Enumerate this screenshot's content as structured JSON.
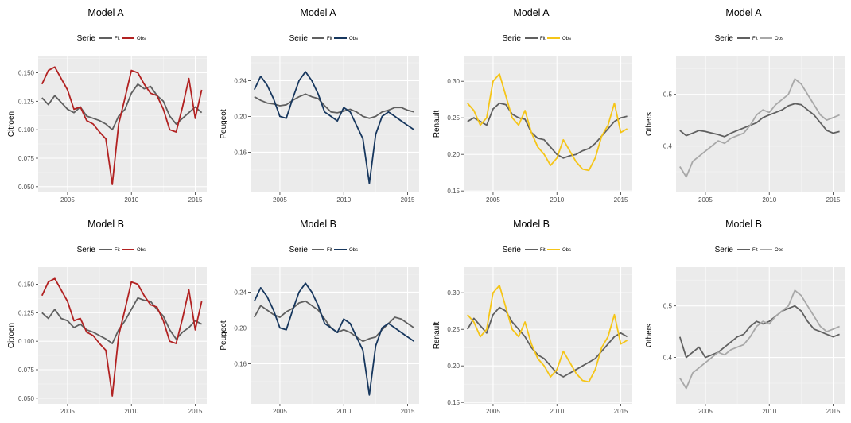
{
  "colors": {
    "fit": "#606060",
    "citroen_obs": "#b22222",
    "peugeot_obs": "#17375e",
    "renault_obs": "#f5c518",
    "others_obs": "#a8a8a8",
    "panel_bg": "#ebebeb",
    "grid_major": "#ffffff"
  },
  "legend": {
    "title": "Serie",
    "fit_label": "Fit",
    "obs_label": "Obs"
  },
  "chart_data": [
    {
      "type": "line",
      "title": "Model A",
      "ylabel": "Citroen",
      "obs_color": "#b22222",
      "xlim": [
        2002.7,
        2015.9
      ],
      "xticks": [
        2005,
        2010,
        2015
      ],
      "ylim": [
        0.045,
        0.165
      ],
      "yticks": [
        0.05,
        0.075,
        0.1,
        0.125,
        0.15
      ],
      "ytick_labels": [
        "0.050",
        "0.075",
        "0.100",
        "0.125",
        "0.150"
      ],
      "x": [
        2003,
        2003.5,
        2004,
        2004.5,
        2005,
        2005.5,
        2006,
        2006.5,
        2007,
        2007.5,
        2008,
        2008.5,
        2009,
        2009.5,
        2010,
        2010.5,
        2011,
        2011.5,
        2012,
        2012.5,
        2013,
        2013.5,
        2014,
        2014.5,
        2015,
        2015.5
      ],
      "series": [
        {
          "name": "Fit",
          "values": [
            0.128,
            0.122,
            0.13,
            0.124,
            0.118,
            0.115,
            0.12,
            0.112,
            0.11,
            0.108,
            0.105,
            0.1,
            0.112,
            0.118,
            0.132,
            0.14,
            0.136,
            0.138,
            0.13,
            0.125,
            0.112,
            0.105,
            0.11,
            0.115,
            0.12,
            0.115
          ]
        },
        {
          "name": "Obs",
          "values": [
            0.14,
            0.152,
            0.155,
            0.145,
            0.135,
            0.118,
            0.12,
            0.108,
            0.105,
            0.098,
            0.092,
            0.052,
            0.105,
            0.128,
            0.152,
            0.15,
            0.14,
            0.132,
            0.13,
            0.118,
            0.1,
            0.098,
            0.12,
            0.145,
            0.11,
            0.135
          ]
        }
      ]
    },
    {
      "type": "line",
      "title": "Model A",
      "ylabel": "Peugeot",
      "obs_color": "#17375e",
      "xlim": [
        2002.7,
        2015.9
      ],
      "xticks": [
        2005,
        2010,
        2015
      ],
      "ylim": [
        0.115,
        0.268
      ],
      "yticks": [
        0.16,
        0.2,
        0.24
      ],
      "ytick_labels": [
        "0.16",
        "0.20",
        "0.24"
      ],
      "x": [
        2003,
        2003.5,
        2004,
        2004.5,
        2005,
        2005.5,
        2006,
        2006.5,
        2007,
        2007.5,
        2008,
        2008.5,
        2009,
        2009.5,
        2010,
        2010.5,
        2011,
        2011.5,
        2012,
        2012.5,
        2013,
        2013.5,
        2014,
        2014.5,
        2015,
        2015.5
      ],
      "series": [
        {
          "name": "Fit",
          "values": [
            0.222,
            0.218,
            0.215,
            0.214,
            0.212,
            0.213,
            0.218,
            0.222,
            0.225,
            0.222,
            0.22,
            0.212,
            0.205,
            0.204,
            0.206,
            0.208,
            0.205,
            0.2,
            0.198,
            0.2,
            0.205,
            0.207,
            0.21,
            0.21,
            0.207,
            0.205
          ]
        },
        {
          "name": "Obs",
          "values": [
            0.23,
            0.245,
            0.235,
            0.22,
            0.2,
            0.198,
            0.22,
            0.24,
            0.25,
            0.24,
            0.225,
            0.205,
            0.2,
            0.195,
            0.21,
            0.205,
            0.19,
            0.175,
            0.125,
            0.18,
            0.2,
            0.205,
            0.2,
            0.195,
            0.19,
            0.185
          ]
        }
      ]
    },
    {
      "type": "line",
      "title": "Model A",
      "ylabel": "Renault",
      "obs_color": "#f5c518",
      "xlim": [
        2002.7,
        2015.9
      ],
      "xticks": [
        2005,
        2010,
        2015
      ],
      "ylim": [
        0.148,
        0.335
      ],
      "yticks": [
        0.15,
        0.2,
        0.25,
        0.3
      ],
      "ytick_labels": [
        "0.15",
        "0.20",
        "0.25",
        "0.30"
      ],
      "x": [
        2003,
        2003.5,
        2004,
        2004.5,
        2005,
        2005.5,
        2006,
        2006.5,
        2007,
        2007.5,
        2008,
        2008.5,
        2009,
        2009.5,
        2010,
        2010.5,
        2011,
        2011.5,
        2012,
        2012.5,
        2013,
        2013.5,
        2014,
        2014.5,
        2015,
        2015.5
      ],
      "series": [
        {
          "name": "Fit",
          "values": [
            0.245,
            0.25,
            0.245,
            0.24,
            0.262,
            0.27,
            0.268,
            0.255,
            0.25,
            0.248,
            0.23,
            0.222,
            0.22,
            0.21,
            0.2,
            0.195,
            0.198,
            0.2,
            0.205,
            0.208,
            0.215,
            0.225,
            0.235,
            0.245,
            0.25,
            0.252
          ]
        },
        {
          "name": "Obs",
          "values": [
            0.27,
            0.26,
            0.24,
            0.25,
            0.3,
            0.31,
            0.28,
            0.25,
            0.24,
            0.26,
            0.23,
            0.21,
            0.2,
            0.185,
            0.195,
            0.22,
            0.205,
            0.19,
            0.18,
            0.178,
            0.195,
            0.225,
            0.24,
            0.27,
            0.23,
            0.235
          ]
        }
      ]
    },
    {
      "type": "line",
      "title": "Model A",
      "ylabel": "Others",
      "obs_color": "#a8a8a8",
      "xlim": [
        2002.7,
        2015.9
      ],
      "xticks": [
        2005,
        2010,
        2015
      ],
      "ylim": [
        0.31,
        0.575
      ],
      "yticks": [
        0.4,
        0.5
      ],
      "ytick_labels": [
        "0.4",
        "0.5"
      ],
      "x": [
        2003,
        2003.5,
        2004,
        2004.5,
        2005,
        2005.5,
        2006,
        2006.5,
        2007,
        2007.5,
        2008,
        2008.5,
        2009,
        2009.5,
        2010,
        2010.5,
        2011,
        2011.5,
        2012,
        2012.5,
        2013,
        2013.5,
        2014,
        2014.5,
        2015,
        2015.5
      ],
      "series": [
        {
          "name": "Fit",
          "values": [
            0.43,
            0.42,
            0.425,
            0.43,
            0.428,
            0.425,
            0.422,
            0.418,
            0.425,
            0.43,
            0.435,
            0.44,
            0.445,
            0.455,
            0.46,
            0.465,
            0.47,
            0.478,
            0.482,
            0.48,
            0.47,
            0.46,
            0.445,
            0.43,
            0.425,
            0.428
          ]
        },
        {
          "name": "Obs",
          "values": [
            0.36,
            0.34,
            0.37,
            0.38,
            0.39,
            0.4,
            0.41,
            0.405,
            0.415,
            0.42,
            0.425,
            0.44,
            0.46,
            0.47,
            0.465,
            0.48,
            0.49,
            0.5,
            0.53,
            0.52,
            0.5,
            0.48,
            0.46,
            0.45,
            0.455,
            0.46
          ]
        }
      ]
    },
    {
      "type": "line",
      "title": "Model B",
      "ylabel": "Citroen",
      "obs_color": "#b22222",
      "xlim": [
        2002.7,
        2015.9
      ],
      "xticks": [
        2005,
        2010,
        2015
      ],
      "ylim": [
        0.045,
        0.165
      ],
      "yticks": [
        0.05,
        0.075,
        0.1,
        0.125,
        0.15
      ],
      "ytick_labels": [
        "0.050",
        "0.075",
        "0.100",
        "0.125",
        "0.150"
      ],
      "x": [
        2003,
        2003.5,
        2004,
        2004.5,
        2005,
        2005.5,
        2006,
        2006.5,
        2007,
        2007.5,
        2008,
        2008.5,
        2009,
        2009.5,
        2010,
        2010.5,
        2011,
        2011.5,
        2012,
        2012.5,
        2013,
        2013.5,
        2014,
        2014.5,
        2015,
        2015.5
      ],
      "series": [
        {
          "name": "Fit",
          "values": [
            0.125,
            0.12,
            0.128,
            0.12,
            0.118,
            0.112,
            0.115,
            0.11,
            0.108,
            0.105,
            0.102,
            0.098,
            0.11,
            0.118,
            0.128,
            0.138,
            0.136,
            0.135,
            0.128,
            0.122,
            0.11,
            0.102,
            0.108,
            0.112,
            0.118,
            0.115
          ]
        },
        {
          "name": "Obs",
          "values": [
            0.14,
            0.152,
            0.155,
            0.145,
            0.135,
            0.118,
            0.12,
            0.108,
            0.105,
            0.098,
            0.092,
            0.052,
            0.105,
            0.128,
            0.152,
            0.15,
            0.14,
            0.132,
            0.13,
            0.118,
            0.1,
            0.098,
            0.12,
            0.145,
            0.11,
            0.135
          ]
        }
      ]
    },
    {
      "type": "line",
      "title": "Model B",
      "ylabel": "Peugeot",
      "obs_color": "#17375e",
      "xlim": [
        2002.7,
        2015.9
      ],
      "xticks": [
        2005,
        2010,
        2015
      ],
      "ylim": [
        0.115,
        0.268
      ],
      "yticks": [
        0.16,
        0.2,
        0.24
      ],
      "ytick_labels": [
        "0.16",
        "0.20",
        "0.24"
      ],
      "x": [
        2003,
        2003.5,
        2004,
        2004.5,
        2005,
        2005.5,
        2006,
        2006.5,
        2007,
        2007.5,
        2008,
        2008.5,
        2009,
        2009.5,
        2010,
        2010.5,
        2011,
        2011.5,
        2012,
        2012.5,
        2013,
        2013.5,
        2014,
        2014.5,
        2015,
        2015.5
      ],
      "series": [
        {
          "name": "Fit",
          "values": [
            0.212,
            0.225,
            0.22,
            0.215,
            0.212,
            0.218,
            0.222,
            0.228,
            0.23,
            0.225,
            0.22,
            0.21,
            0.2,
            0.195,
            0.198,
            0.195,
            0.19,
            0.185,
            0.188,
            0.19,
            0.198,
            0.205,
            0.212,
            0.21,
            0.205,
            0.2
          ]
        },
        {
          "name": "Obs",
          "values": [
            0.23,
            0.245,
            0.235,
            0.22,
            0.2,
            0.198,
            0.22,
            0.24,
            0.25,
            0.24,
            0.225,
            0.205,
            0.2,
            0.195,
            0.21,
            0.205,
            0.19,
            0.175,
            0.125,
            0.18,
            0.2,
            0.205,
            0.2,
            0.195,
            0.19,
            0.185
          ]
        }
      ]
    },
    {
      "type": "line",
      "title": "Model B",
      "ylabel": "Renault",
      "obs_color": "#f5c518",
      "xlim": [
        2002.7,
        2015.9
      ],
      "xticks": [
        2005,
        2010,
        2015
      ],
      "ylim": [
        0.148,
        0.335
      ],
      "yticks": [
        0.15,
        0.2,
        0.25,
        0.3
      ],
      "ytick_labels": [
        "0.15",
        "0.20",
        "0.25",
        "0.30"
      ],
      "x": [
        2003,
        2003.5,
        2004,
        2004.5,
        2005,
        2005.5,
        2006,
        2006.5,
        2007,
        2007.5,
        2008,
        2008.5,
        2009,
        2009.5,
        2010,
        2010.5,
        2011,
        2011.5,
        2012,
        2012.5,
        2013,
        2013.5,
        2014,
        2014.5,
        2015,
        2015.5
      ],
      "series": [
        {
          "name": "Fit",
          "values": [
            0.25,
            0.265,
            0.255,
            0.245,
            0.27,
            0.28,
            0.275,
            0.26,
            0.25,
            0.24,
            0.225,
            0.215,
            0.21,
            0.2,
            0.19,
            0.185,
            0.19,
            0.195,
            0.2,
            0.205,
            0.21,
            0.22,
            0.23,
            0.24,
            0.245,
            0.24
          ]
        },
        {
          "name": "Obs",
          "values": [
            0.27,
            0.26,
            0.24,
            0.25,
            0.3,
            0.31,
            0.28,
            0.25,
            0.24,
            0.26,
            0.23,
            0.21,
            0.2,
            0.185,
            0.195,
            0.22,
            0.205,
            0.19,
            0.18,
            0.178,
            0.195,
            0.225,
            0.24,
            0.27,
            0.23,
            0.235
          ]
        }
      ]
    },
    {
      "type": "line",
      "title": "Model B",
      "ylabel": "Others",
      "obs_color": "#a8a8a8",
      "xlim": [
        2002.7,
        2015.9
      ],
      "xticks": [
        2005,
        2010,
        2015
      ],
      "ylim": [
        0.31,
        0.575
      ],
      "yticks": [
        0.4,
        0.5
      ],
      "ytick_labels": [
        "0.4",
        "0.5"
      ],
      "x": [
        2003,
        2003.5,
        2004,
        2004.5,
        2005,
        2005.5,
        2006,
        2006.5,
        2007,
        2007.5,
        2008,
        2008.5,
        2009,
        2009.5,
        2010,
        2010.5,
        2011,
        2011.5,
        2012,
        2012.5,
        2013,
        2013.5,
        2014,
        2014.5,
        2015,
        2015.5
      ],
      "series": [
        {
          "name": "Fit",
          "values": [
            0.44,
            0.4,
            0.41,
            0.42,
            0.4,
            0.405,
            0.41,
            0.42,
            0.43,
            0.44,
            0.445,
            0.46,
            0.47,
            0.465,
            0.47,
            0.48,
            0.49,
            0.495,
            0.5,
            0.49,
            0.47,
            0.455,
            0.45,
            0.445,
            0.44,
            0.445
          ]
        },
        {
          "name": "Obs",
          "values": [
            0.36,
            0.34,
            0.37,
            0.38,
            0.39,
            0.4,
            0.41,
            0.405,
            0.415,
            0.42,
            0.425,
            0.44,
            0.46,
            0.47,
            0.465,
            0.48,
            0.49,
            0.5,
            0.53,
            0.52,
            0.5,
            0.48,
            0.46,
            0.45,
            0.455,
            0.46
          ]
        }
      ]
    }
  ]
}
